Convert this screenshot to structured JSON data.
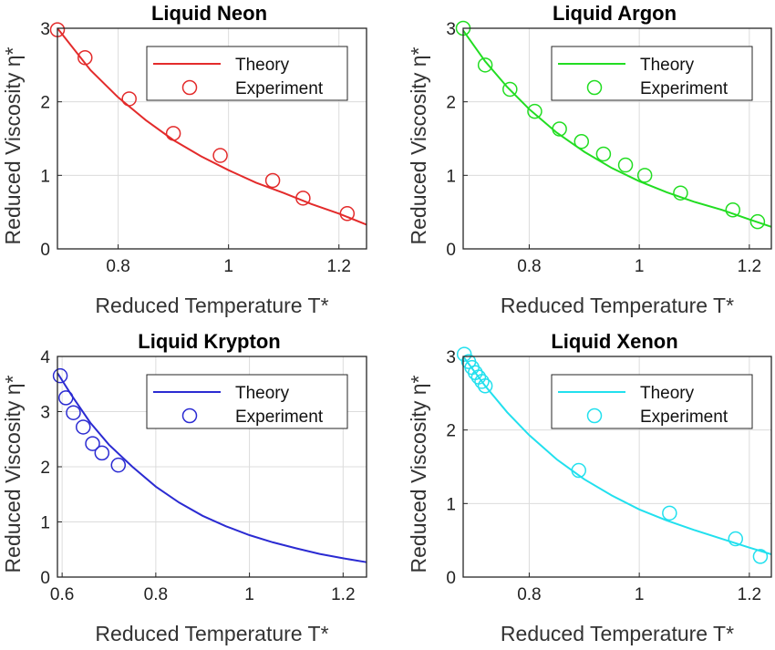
{
  "chart_data": [
    {
      "type": "line",
      "title": "Liquid Neon",
      "xlabel": "Reduced Temperature T*",
      "ylabel": "Reduced  Viscosity  η*",
      "xlim": [
        0.69,
        1.25
      ],
      "ylim": [
        0,
        3
      ],
      "xticks": [
        "0.8",
        "1",
        "1.2"
      ],
      "yticks": [
        "0",
        "1",
        "2",
        "3"
      ],
      "grid": true,
      "legend_position": "top-right",
      "color": "#e32b2b",
      "series": [
        {
          "name": "Theory",
          "kind": "line",
          "x": [
            0.69,
            0.75,
            0.8,
            0.85,
            0.9,
            0.95,
            1.0,
            1.05,
            1.1,
            1.15,
            1.2,
            1.25
          ],
          "y": [
            3.0,
            2.43,
            2.06,
            1.75,
            1.48,
            1.26,
            1.07,
            0.9,
            0.76,
            0.61,
            0.48,
            0.33
          ]
        },
        {
          "name": "Experiment",
          "kind": "scatter",
          "x": [
            0.69,
            0.74,
            0.82,
            0.9,
            0.985,
            1.08,
            1.135,
            1.215
          ],
          "y": [
            2.98,
            2.6,
            2.04,
            1.57,
            1.27,
            0.93,
            0.69,
            0.48
          ]
        }
      ]
    },
    {
      "type": "line",
      "title": "Liquid Argon",
      "xlabel": "Reduced Temperature T*",
      "ylabel": "Reduced  Viscosity  η*",
      "xlim": [
        0.68,
        1.24
      ],
      "ylim": [
        0,
        3
      ],
      "xticks": [
        "0.8",
        "1",
        "1.2"
      ],
      "yticks": [
        "0",
        "1",
        "2",
        "3"
      ],
      "grid": true,
      "legend_position": "top-right",
      "color": "#22dd22",
      "series": [
        {
          "name": "Theory",
          "kind": "line",
          "x": [
            0.68,
            0.72,
            0.76,
            0.8,
            0.85,
            0.9,
            0.95,
            1.0,
            1.05,
            1.1,
            1.15,
            1.2,
            1.24
          ],
          "y": [
            2.97,
            2.55,
            2.2,
            1.9,
            1.58,
            1.32,
            1.1,
            0.92,
            0.77,
            0.64,
            0.53,
            0.4,
            0.3
          ]
        },
        {
          "name": "Experiment",
          "kind": "scatter",
          "x": [
            0.68,
            0.72,
            0.765,
            0.81,
            0.855,
            0.895,
            0.935,
            0.975,
            1.01,
            1.075,
            1.17,
            1.215
          ],
          "y": [
            3.0,
            2.5,
            2.17,
            1.87,
            1.63,
            1.46,
            1.29,
            1.14,
            1.0,
            0.76,
            0.53,
            0.37
          ]
        }
      ]
    },
    {
      "type": "line",
      "title": "Liquid Krypton",
      "xlabel": "Reduced Temperature T*",
      "ylabel": "Reduced  Viscosity  η*",
      "xlim": [
        0.59,
        1.25
      ],
      "ylim": [
        0,
        4
      ],
      "xticks": [
        "0.6",
        "0.8",
        "1",
        "1.2"
      ],
      "yticks": [
        "0",
        "1",
        "2",
        "3",
        "4"
      ],
      "grid": true,
      "legend_position": "top-right",
      "color": "#2b2bd2",
      "series": [
        {
          "name": "Theory",
          "kind": "line",
          "x": [
            0.59,
            0.62,
            0.66,
            0.7,
            0.75,
            0.8,
            0.85,
            0.9,
            0.95,
            1.0,
            1.05,
            1.1,
            1.15,
            1.2,
            1.25
          ],
          "y": [
            3.7,
            3.3,
            2.8,
            2.4,
            2.0,
            1.64,
            1.35,
            1.11,
            0.92,
            0.76,
            0.63,
            0.52,
            0.42,
            0.34,
            0.27
          ]
        },
        {
          "name": "Experiment",
          "kind": "scatter",
          "x": [
            0.596,
            0.608,
            0.624,
            0.645,
            0.665,
            0.685,
            0.72
          ],
          "y": [
            3.65,
            3.25,
            2.98,
            2.72,
            2.42,
            2.25,
            2.03
          ]
        }
      ]
    },
    {
      "type": "line",
      "title": "Liquid Xenon",
      "xlabel": "Reduced Temperature T*",
      "ylabel": "Reduced  Viscosity  η*",
      "xlim": [
        0.68,
        1.24
      ],
      "ylim": [
        0,
        3
      ],
      "xticks": [
        "0.8",
        "1",
        "1.2"
      ],
      "yticks": [
        "0",
        "1",
        "2",
        "3"
      ],
      "grid": true,
      "legend_position": "top-right",
      "color": "#22e0ee",
      "series": [
        {
          "name": "Theory",
          "kind": "line",
          "x": [
            0.68,
            0.72,
            0.76,
            0.8,
            0.85,
            0.9,
            0.95,
            1.0,
            1.05,
            1.1,
            1.15,
            1.2,
            1.24
          ],
          "y": [
            3.0,
            2.6,
            2.24,
            1.93,
            1.6,
            1.33,
            1.11,
            0.92,
            0.77,
            0.64,
            0.52,
            0.4,
            0.31
          ]
        },
        {
          "name": "Experiment",
          "kind": "scatter",
          "x": [
            0.682,
            0.69,
            0.696,
            0.702,
            0.708,
            0.714,
            0.72,
            0.89,
            1.055,
            1.175,
            1.22
          ],
          "y": [
            3.03,
            2.93,
            2.85,
            2.78,
            2.72,
            2.66,
            2.6,
            1.45,
            0.87,
            0.52,
            0.28
          ]
        }
      ]
    }
  ]
}
